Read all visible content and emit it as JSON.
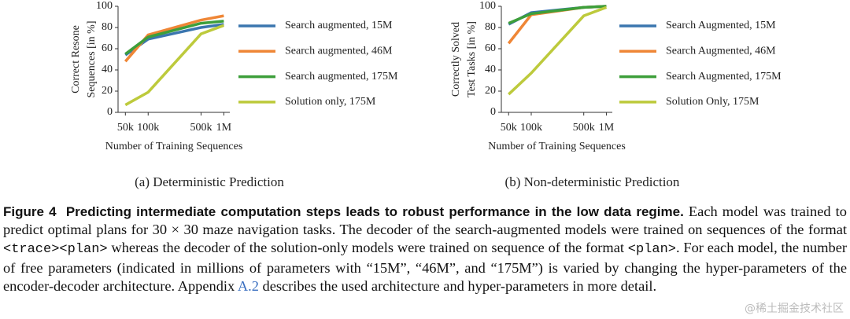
{
  "chart_data": [
    {
      "type": "line",
      "xscale": "log",
      "legend": "right",
      "xlabel": "Number of Training Sequences",
      "ylabel": [
        "Correct Resone",
        "Sequences [in %]"
      ],
      "subcaption": "(a)  Deterministic Prediction",
      "x": [
        50000,
        100000,
        500000,
        1000000
      ],
      "xlim": [
        40000,
        1200000
      ],
      "xticks": [
        {
          "value": 50000,
          "label": "50k"
        },
        {
          "value": 100000,
          "label": "100k"
        },
        {
          "value": 500000,
          "label": "500k"
        },
        {
          "value": 1000000,
          "label": "1M"
        }
      ],
      "ylim": [
        0,
        100
      ],
      "yticks": [
        0,
        20,
        40,
        60,
        80,
        100
      ],
      "series": [
        {
          "name": "Search augmented, 15M",
          "color": "#3b76af",
          "values": [
            54,
            69,
            80,
            83
          ]
        },
        {
          "name": "Search augmented, 46M",
          "color": "#ef8636",
          "values": [
            48,
            73,
            87,
            91
          ]
        },
        {
          "name": "Search augmented, 175M",
          "color": "#3d9f3a",
          "values": [
            55,
            71,
            84,
            86
          ]
        },
        {
          "name": "Solution only, 175M",
          "color": "#bdca3c",
          "values": [
            7,
            19,
            74,
            82
          ]
        }
      ]
    },
    {
      "type": "line",
      "xscale": "log",
      "legend": "right",
      "xlabel": "Number of Training Sequences",
      "ylabel": [
        "Correctly Solved",
        "Test Tasks [in %]"
      ],
      "subcaption": "(b)  Non-deterministic Prediction",
      "x": [
        50000,
        100000,
        500000,
        1000000
      ],
      "xlim": [
        40000,
        1200000
      ],
      "xticks": [
        {
          "value": 50000,
          "label": "50k"
        },
        {
          "value": 100000,
          "label": "100k"
        },
        {
          "value": 500000,
          "label": "500k"
        },
        {
          "value": 1000000,
          "label": "1M"
        }
      ],
      "ylim": [
        0,
        100
      ],
      "yticks": [
        0,
        20,
        40,
        60,
        80,
        100
      ],
      "series": [
        {
          "name": "Search Augmented, 15M",
          "color": "#3b76af",
          "values": [
            83,
            94,
            99,
            100
          ]
        },
        {
          "name": "Search Augmented, 46M",
          "color": "#ef8636",
          "values": [
            65,
            92,
            99,
            100
          ]
        },
        {
          "name": "Search Augmented, 175M",
          "color": "#3d9f3a",
          "values": [
            84,
            93,
            99,
            100
          ]
        },
        {
          "name": "Solution Only, 175M",
          "color": "#bdca3c",
          "values": [
            17,
            37,
            91,
            99
          ]
        }
      ]
    }
  ],
  "caption": {
    "label": "Figure 4",
    "headline": "Predicting intermediate computation steps leads to robust performance in the low data regime.",
    "body": [
      " Each model was trained to predict optimal plans for 30 × 30 maze navigation tasks. The decoder of the search-augmented models were trained on sequences of the format ",
      "<trace><plan>",
      " whereas the decoder of the solution-only models were trained on sequence of the format ",
      "<plan>",
      ". For each model, the number of free parameters (indicated in millions of parameters with “15M”, “46M”, and “175M”) is varied by changing the hyper-parameters of the encoder-decoder architecture. Appendix ",
      "A.2",
      " describes the used architecture and hyper-parameters in more detail."
    ]
  },
  "watermark": "@稀土掘金技术社区"
}
